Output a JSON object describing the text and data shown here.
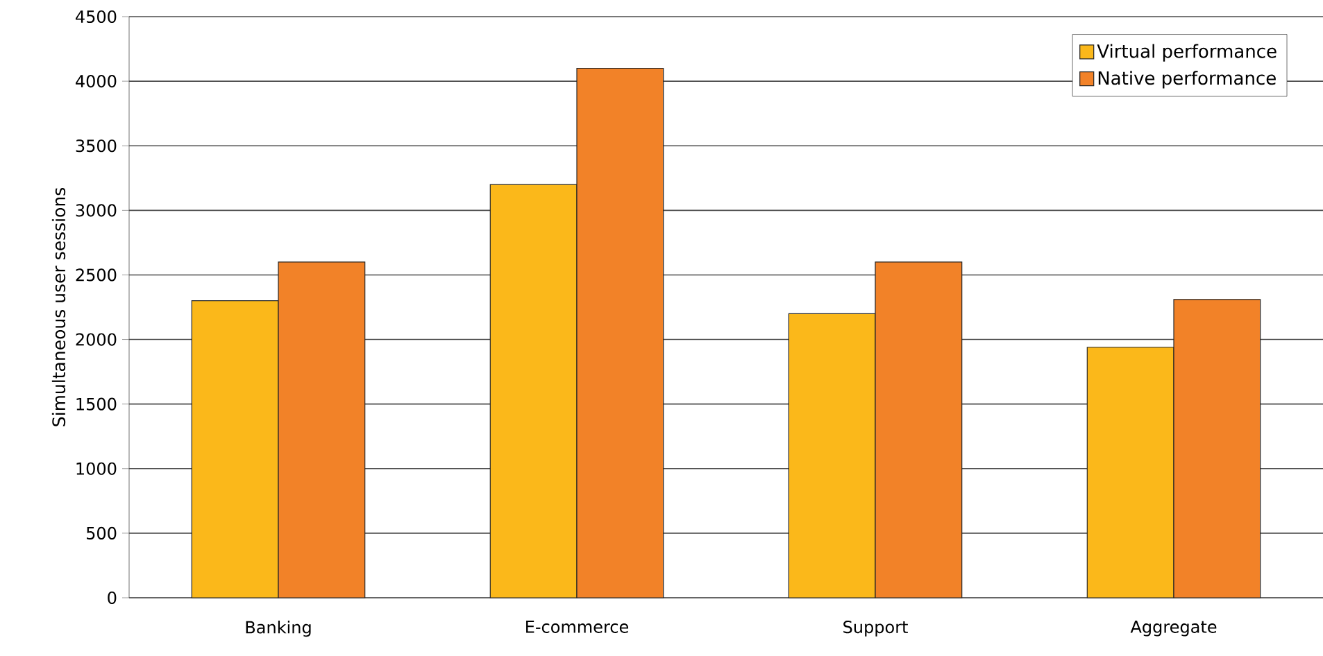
{
  "chart_data": {
    "type": "bar",
    "ylabel": "Simultaneous user sessions",
    "categories": [
      "Banking",
      "E-commerce",
      "Support",
      "Aggregate"
    ],
    "series": [
      {
        "name": "Virtual performance",
        "color": "#fbb81a",
        "values": [
          2300,
          3200,
          2200,
          1940
        ]
      },
      {
        "name": "Native performance",
        "color": "#f28228",
        "values": [
          2600,
          4100,
          2600,
          2310
        ]
      }
    ],
    "ylim": [
      0,
      4500
    ],
    "yticks": [
      0,
      500,
      1000,
      1500,
      2000,
      2500,
      3000,
      3500,
      4000,
      4500
    ],
    "grid": "y",
    "legend": "top right"
  }
}
